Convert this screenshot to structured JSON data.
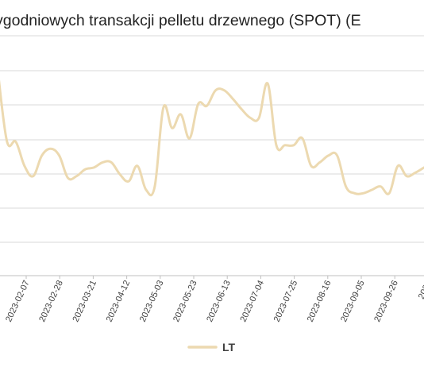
{
  "chart_data": {
    "type": "line",
    "title": "ygodniowych transakcji pelletu drzewnego (SPOT) (E",
    "xlabel": "",
    "ylabel": "",
    "grid": true,
    "legend_position": "bottom",
    "colors": {
      "series": "#ecd9b0",
      "grid": "#d9d9d9",
      "axis": "#bfbfbf"
    },
    "x_tick_labels": [
      "2023-02-07",
      "2023-02-28",
      "2023-03-21",
      "2023-04-12",
      "2023-05-03",
      "2023-05-23",
      "2023-06-13",
      "2023-07-04",
      "2023-07-25",
      "2023-08-16",
      "2023-09-05",
      "2023-09-26",
      "2023"
    ],
    "series": [
      {
        "name": "LT",
        "values": [
          5.8,
          3.9,
          3.9,
          3.2,
          2.9,
          3.5,
          3.7,
          3.5,
          2.85,
          2.9,
          3.1,
          3.15,
          3.3,
          3.3,
          2.95,
          2.75,
          3.2,
          2.5,
          2.6,
          4.9,
          4.3,
          4.7,
          4.0,
          5.0,
          4.95,
          5.4,
          5.4,
          5.15,
          4.85,
          4.6,
          4.6,
          5.6,
          3.8,
          3.8,
          3.8,
          4.0,
          3.2,
          3.3,
          3.5,
          3.5,
          2.6,
          2.4,
          2.4,
          2.5,
          2.6,
          2.4,
          3.2,
          2.9,
          3.0,
          3.15
        ]
      }
    ]
  }
}
